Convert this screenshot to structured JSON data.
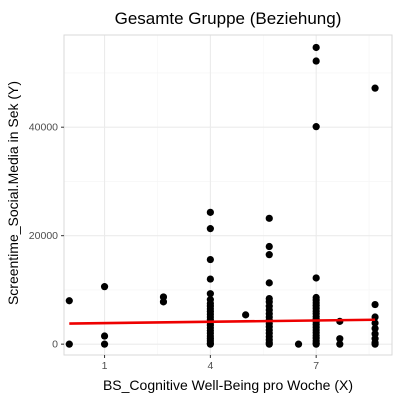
{
  "chart_data": {
    "type": "scatter",
    "title": "Gesamte Gruppe (Beziehung)",
    "xlabel": "BS_Cognitive Well-Being pro Woche (X)",
    "ylabel": "Screentime_Social.Media in Sek (Y)",
    "xlim": [
      -0.15,
      9.15
    ],
    "ylim": [
      -2000,
      57000
    ],
    "x_ticks": [
      {
        "value": 1,
        "label": "1"
      },
      {
        "value": 4,
        "label": "4"
      },
      {
        "value": 7,
        "label": "7"
      }
    ],
    "y_ticks": [
      {
        "value": 0,
        "label": "0"
      },
      {
        "value": 20000,
        "label": "20000"
      },
      {
        "value": 40000,
        "label": "40000"
      }
    ],
    "x_minor": [
      2.5,
      5.5,
      8.5
    ],
    "y_minor": [
      10000,
      30000,
      50000
    ],
    "grid": true,
    "background": "#ffffff",
    "point_color": "#000000",
    "line_color": "#ee0000",
    "grid_color": "#ebebeb",
    "minor_grid_color": "#f5f5f5",
    "panel_border_color": "#d9d9d9",
    "regression_line": {
      "x": [
        0,
        8.67
      ],
      "y": [
        3800,
        4500
      ]
    },
    "points": [
      {
        "x": 0,
        "y": 8000
      },
      {
        "x": 0,
        "y": 0
      },
      {
        "x": 1,
        "y": 10600
      },
      {
        "x": 1,
        "y": 1500
      },
      {
        "x": 1,
        "y": 0
      },
      {
        "x": 2.67,
        "y": 8700
      },
      {
        "x": 2.67,
        "y": 7800
      },
      {
        "x": 4,
        "y": 24300
      },
      {
        "x": 4,
        "y": 21300
      },
      {
        "x": 4,
        "y": 15600
      },
      {
        "x": 4,
        "y": 12000
      },
      {
        "x": 4,
        "y": 9300
      },
      {
        "x": 4,
        "y": 8200
      },
      {
        "x": 4,
        "y": 7500
      },
      {
        "x": 4,
        "y": 7000
      },
      {
        "x": 4,
        "y": 6500
      },
      {
        "x": 4,
        "y": 6000
      },
      {
        "x": 4,
        "y": 5500
      },
      {
        "x": 4,
        "y": 5000
      },
      {
        "x": 4,
        "y": 4500
      },
      {
        "x": 4,
        "y": 4000
      },
      {
        "x": 4,
        "y": 3500
      },
      {
        "x": 4,
        "y": 3000
      },
      {
        "x": 4,
        "y": 2500
      },
      {
        "x": 4,
        "y": 2000
      },
      {
        "x": 4,
        "y": 1500
      },
      {
        "x": 4,
        "y": 1000
      },
      {
        "x": 4,
        "y": 600
      },
      {
        "x": 4,
        "y": 200
      },
      {
        "x": 4,
        "y": 0
      },
      {
        "x": 5,
        "y": 5400
      },
      {
        "x": 5.67,
        "y": 23200
      },
      {
        "x": 5.67,
        "y": 18000
      },
      {
        "x": 5.67,
        "y": 16500
      },
      {
        "x": 5.67,
        "y": 11300
      },
      {
        "x": 5.67,
        "y": 8400
      },
      {
        "x": 5.67,
        "y": 7800
      },
      {
        "x": 5.67,
        "y": 7000
      },
      {
        "x": 5.67,
        "y": 6300
      },
      {
        "x": 5.67,
        "y": 5600
      },
      {
        "x": 5.67,
        "y": 5000
      },
      {
        "x": 5.67,
        "y": 4400
      },
      {
        "x": 5.67,
        "y": 3800
      },
      {
        "x": 5.67,
        "y": 3200
      },
      {
        "x": 5.67,
        "y": 2600
      },
      {
        "x": 5.67,
        "y": 2000
      },
      {
        "x": 5.67,
        "y": 1400
      },
      {
        "x": 5.67,
        "y": 800
      },
      {
        "x": 5.67,
        "y": 300
      },
      {
        "x": 5.67,
        "y": 0
      },
      {
        "x": 6.5,
        "y": 0
      },
      {
        "x": 7,
        "y": 54700
      },
      {
        "x": 7,
        "y": 52200
      },
      {
        "x": 7,
        "y": 40100
      },
      {
        "x": 7,
        "y": 12200
      },
      {
        "x": 7,
        "y": 8600
      },
      {
        "x": 7,
        "y": 8100
      },
      {
        "x": 7,
        "y": 7600
      },
      {
        "x": 7,
        "y": 7100
      },
      {
        "x": 7,
        "y": 6600
      },
      {
        "x": 7,
        "y": 6100
      },
      {
        "x": 7,
        "y": 5600
      },
      {
        "x": 7,
        "y": 5100
      },
      {
        "x": 7,
        "y": 4600
      },
      {
        "x": 7,
        "y": 4100
      },
      {
        "x": 7,
        "y": 3600
      },
      {
        "x": 7,
        "y": 3100
      },
      {
        "x": 7,
        "y": 2600
      },
      {
        "x": 7,
        "y": 2100
      },
      {
        "x": 7,
        "y": 1600
      },
      {
        "x": 7,
        "y": 1100
      },
      {
        "x": 7,
        "y": 600
      },
      {
        "x": 7,
        "y": 200
      },
      {
        "x": 7,
        "y": 0
      },
      {
        "x": 7.67,
        "y": 4200
      },
      {
        "x": 7.67,
        "y": 1000
      },
      {
        "x": 7.67,
        "y": 0
      },
      {
        "x": 8.67,
        "y": 47200
      },
      {
        "x": 8.67,
        "y": 7300
      },
      {
        "x": 8.67,
        "y": 5000
      },
      {
        "x": 8.67,
        "y": 3900
      },
      {
        "x": 8.67,
        "y": 2900
      },
      {
        "x": 8.67,
        "y": 1900
      },
      {
        "x": 8.67,
        "y": 1000
      },
      {
        "x": 8.67,
        "y": 300
      },
      {
        "x": 8.67,
        "y": 0
      }
    ]
  }
}
